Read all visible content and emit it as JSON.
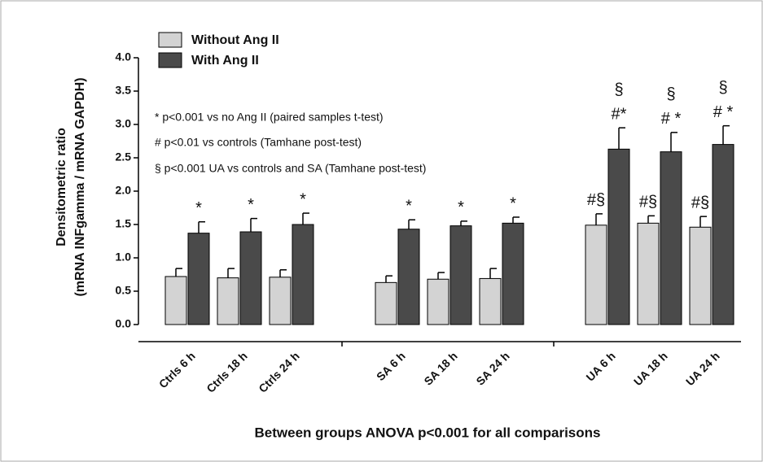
{
  "chart_data": {
    "type": "bar",
    "y_label": [
      "Densitometric ratio",
      "(mRNA INFgamma / mRNA GAPDH)"
    ],
    "x_label": "Between groups ANOVA p<0.001 for all comparisons",
    "notes": [
      "* p<0.001 vs no Ang II (paired samples t-test)",
      "# p<0.01 vs controls (Tamhane post-test)",
      "§ p<0.001 UA vs controls and SA (Tamhane post-test)"
    ],
    "categories": [
      "Ctrls 6 h",
      "Ctrls 18 h",
      "Ctrls 24 h",
      "SA 6 h",
      "SA 18 h",
      "SA 24 h",
      "UA 6 h",
      "UA 18 h",
      "UA 24 h"
    ],
    "series": [
      {
        "name": "Without Ang II",
        "color": "#d3d3d3",
        "values": [
          0.72,
          0.7,
          0.71,
          0.63,
          0.68,
          0.69,
          1.49,
          1.52,
          1.46
        ],
        "errors": [
          0.12,
          0.14,
          0.11,
          0.1,
          0.1,
          0.15,
          0.17,
          0.11,
          0.16
        ],
        "annotations": [
          null,
          null,
          null,
          null,
          null,
          null,
          "#§",
          "#§",
          "#§"
        ],
        "annotations_top": [
          null,
          null,
          null,
          null,
          null,
          null,
          null,
          null,
          null
        ]
      },
      {
        "name": "With Ang II",
        "color": "#4a4a4a",
        "values": [
          1.37,
          1.39,
          1.5,
          1.43,
          1.48,
          1.52,
          2.63,
          2.59,
          2.7
        ],
        "errors": [
          0.17,
          0.2,
          0.17,
          0.14,
          0.07,
          0.09,
          0.32,
          0.29,
          0.28
        ],
        "annotations": [
          "*",
          "*",
          "*",
          "*",
          "*",
          "*",
          "#*",
          "# *",
          "# *"
        ],
        "annotations_top": [
          null,
          null,
          null,
          null,
          null,
          null,
          "§",
          "§",
          "§"
        ]
      }
    ],
    "ylim": [
      0,
      4
    ],
    "yticks": [
      {
        "value": 0,
        "label": "0.0"
      },
      {
        "value": 0.5,
        "label": "0.5"
      },
      {
        "value": 1,
        "label": "1.0"
      },
      {
        "value": 1.5,
        "label": "1.5"
      },
      {
        "value": 2,
        "label": "2.0"
      },
      {
        "value": 2.5,
        "label": "2.5"
      },
      {
        "value": 3,
        "label": "3.0"
      },
      {
        "value": 3.5,
        "label": "3.5"
      },
      {
        "value": 4,
        "label": "4.0"
      }
    ],
    "legend": "top-left"
  }
}
